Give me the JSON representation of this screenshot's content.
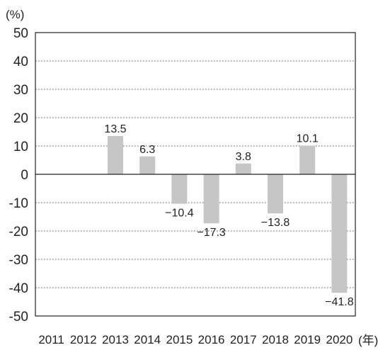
{
  "chart_data": {
    "type": "bar",
    "y_unit_label": "(%)",
    "x_unit_label": "(年)",
    "categories": [
      "2011",
      "2012",
      "2013",
      "2014",
      "2015",
      "2016",
      "2017",
      "2018",
      "2019",
      "2020"
    ],
    "values": [
      null,
      null,
      13.5,
      6.3,
      -10.4,
      -17.3,
      3.8,
      -13.8,
      10.1,
      -41.8
    ],
    "data_labels": [
      "",
      "",
      "13.5",
      "6.3",
      "−10.4",
      "−17.3",
      "3.8",
      "−13.8",
      "10.1",
      "−41.8"
    ],
    "y_ticks": [
      "50",
      "40",
      "30",
      "20",
      "10",
      "0",
      "-10",
      "-20",
      "-30",
      "-40",
      "-50"
    ],
    "ylim": [
      -50,
      50
    ],
    "grid": "horizontal dotted",
    "bar_color": "#c6c6c6",
    "axis_color": "#222222",
    "grid_color": "#555555"
  }
}
